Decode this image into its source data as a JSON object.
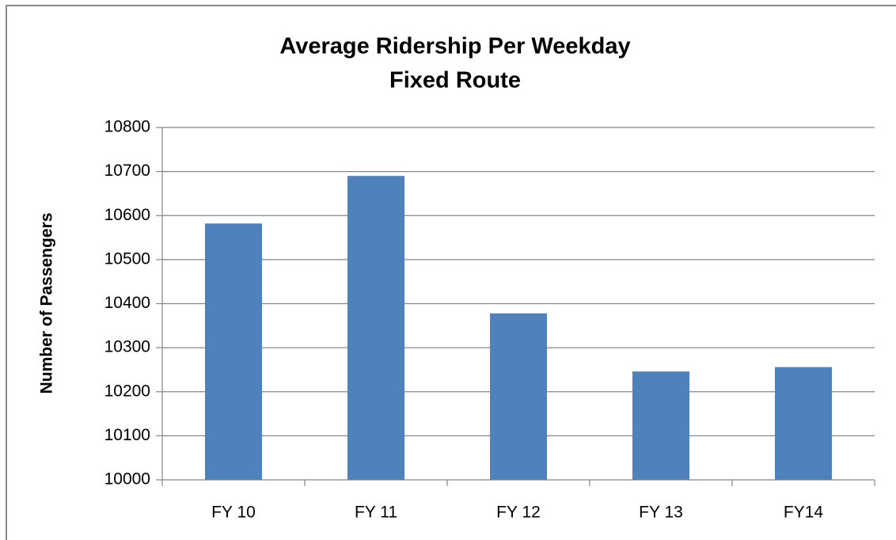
{
  "chart_data": {
    "type": "bar",
    "title": "Average Ridership Per Weekday",
    "subtitle": "Fixed Route",
    "y_label": "Number of Passengers",
    "categories": [
      "FY 10",
      "FY 11",
      "FY 12",
      "FY 13",
      "FY14"
    ],
    "values": [
      10582,
      10690,
      10378,
      10246,
      10256
    ],
    "color": "#4f81bd",
    "ylim": [
      10000,
      10800
    ],
    "yticks": [
      10000,
      10100,
      10200,
      10300,
      10400,
      10500,
      10600,
      10700,
      10800
    ],
    "grid": true
  }
}
